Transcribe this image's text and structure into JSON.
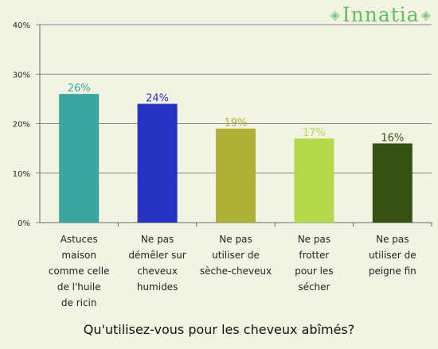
{
  "logo": {
    "text": "Innatia",
    "ornament_left": "◈",
    "ornament_right": "◈",
    "color": "#5fbf5f"
  },
  "question": "Qu'utilisez-vous pour les cheveux abîmés?",
  "chart_data": {
    "type": "bar",
    "title": "",
    "xlabel": "",
    "ylabel": "",
    "ylim": [
      0,
      40
    ],
    "yticks": [
      "0%",
      "10%",
      "20%",
      "30%",
      "40%"
    ],
    "ytick_values": [
      0,
      10,
      20,
      30,
      40
    ],
    "grid": true,
    "categories": [
      [
        "Astuces",
        "maison",
        "comme celle",
        "de l'huile",
        "de ricin"
      ],
      [
        "Ne pas",
        "démêler sur",
        "cheveux",
        "humides"
      ],
      [
        "Ne pas",
        "utiliser de",
        "sèche-cheveux"
      ],
      [
        "Ne pas",
        "frotter",
        "pour les",
        "sécher"
      ],
      [
        "Ne pas",
        "utiliser de",
        "peigne fin"
      ]
    ],
    "values": [
      26,
      24,
      19,
      17,
      16
    ],
    "value_labels": [
      "26%",
      "24%",
      "19%",
      "17%",
      "16%"
    ],
    "colors": [
      "#3aa6a0",
      "#2633c5",
      "#b0b038",
      "#b6d94c",
      "#355215"
    ],
    "label_colors": [
      "#3aa6a0",
      "#2633c5",
      "#b0b038",
      "#b6d94c",
      "#355215"
    ]
  }
}
